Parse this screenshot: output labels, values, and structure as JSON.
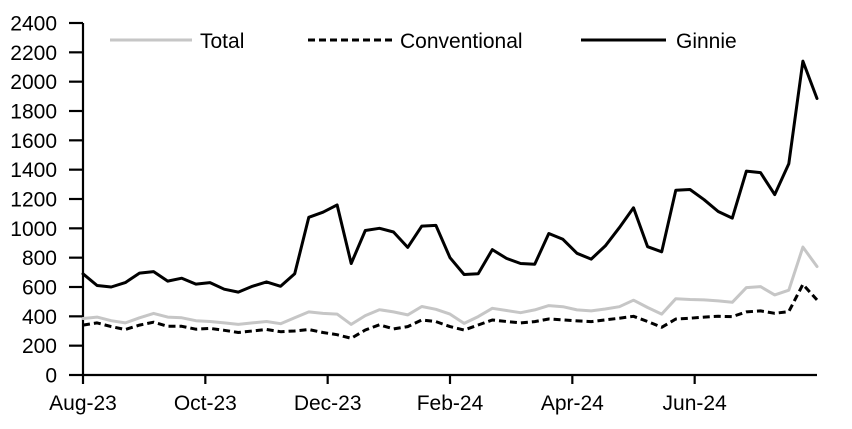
{
  "chart_data": {
    "type": "line",
    "title": "",
    "xlabel": "",
    "ylabel": "",
    "x_axis": {
      "tick_labels": [
        "Aug-23",
        "Oct-23",
        "Dec-23",
        "Feb-24",
        "Apr-24",
        "Jun-24"
      ],
      "tick_interval": "2 months",
      "data_frequency": "weekly",
      "range": "Aug-2023 to Aug-2024",
      "n_points": 53
    },
    "y_axis": {
      "min": 0,
      "max": 2400,
      "tick_step": 200,
      "tick_labels": [
        "0",
        "200",
        "400",
        "600",
        "800",
        "1000",
        "1200",
        "1400",
        "1600",
        "1800",
        "2000",
        "2200",
        "2400"
      ]
    },
    "legend_position": "top",
    "grid": false,
    "axis_color": "#000000",
    "series": [
      {
        "name": "Total",
        "color": "#c6c6c6",
        "style": "solid",
        "values": [
          385,
          395,
          370,
          355,
          390,
          420,
          395,
          390,
          370,
          365,
          355,
          345,
          355,
          365,
          350,
          390,
          430,
          420,
          415,
          345,
          405,
          445,
          430,
          410,
          467,
          448,
          415,
          352,
          398,
          455,
          440,
          425,
          444,
          473,
          466,
          444,
          437,
          450,
          466,
          510,
          460,
          415,
          520,
          515,
          512,
          505,
          496,
          596,
          603,
          546,
          578,
          872,
          740
        ]
      },
      {
        "name": "Conventional",
        "color": "#000000",
        "style": "dashed",
        "values": [
          340,
          355,
          330,
          310,
          340,
          360,
          332,
          332,
          312,
          318,
          305,
          290,
          300,
          310,
          295,
          300,
          310,
          290,
          275,
          250,
          307,
          342,
          314,
          330,
          375,
          364,
          330,
          307,
          341,
          375,
          365,
          355,
          364,
          382,
          376,
          369,
          364,
          376,
          387,
          400,
          365,
          325,
          382,
          387,
          395,
          400,
          398,
          430,
          437,
          421,
          432,
          618,
          512
        ]
      },
      {
        "name": "Ginnie",
        "color": "#000000",
        "style": "solid",
        "values": [
          690,
          610,
          600,
          630,
          695,
          705,
          640,
          660,
          620,
          630,
          585,
          565,
          605,
          635,
          605,
          690,
          1075,
          1110,
          1160,
          760,
          985,
          1000,
          975,
          870,
          1015,
          1020,
          800,
          685,
          690,
          855,
          795,
          760,
          755,
          965,
          925,
          830,
          790,
          880,
          1005,
          1140,
          875,
          840,
          1260,
          1265,
          1195,
          1115,
          1070,
          1390,
          1380,
          1230,
          1440,
          2140,
          1885
        ]
      }
    ]
  }
}
